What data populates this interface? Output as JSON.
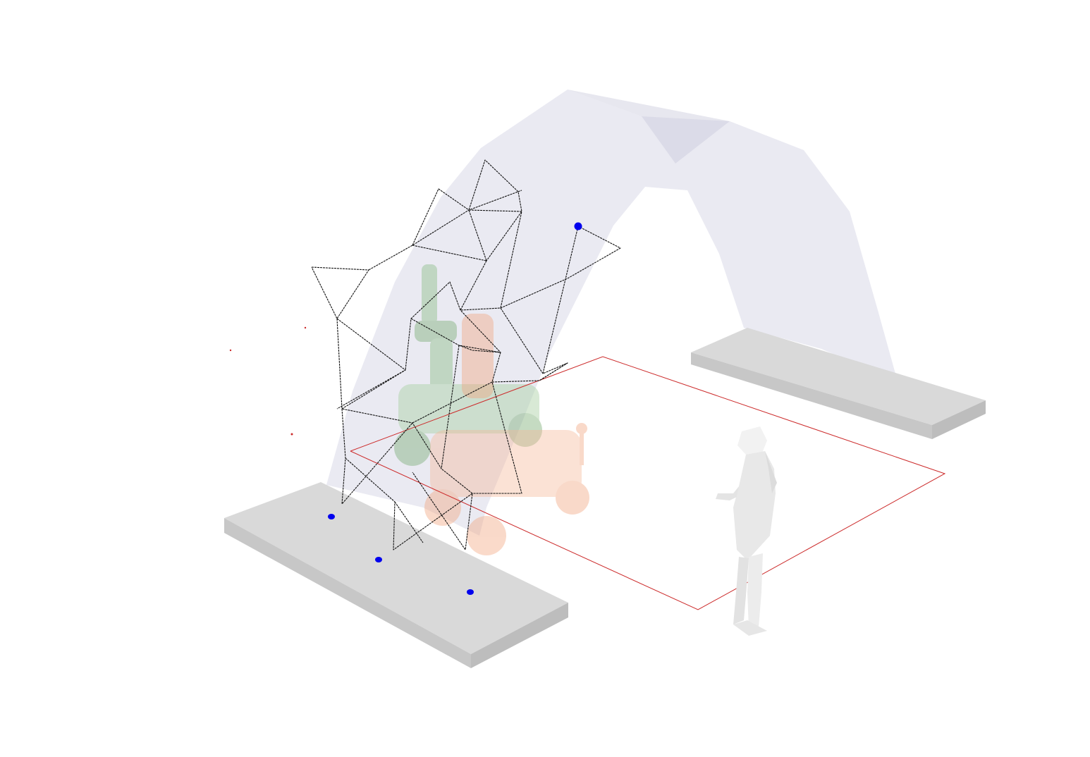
{
  "scene": {
    "background_color": "#ffffff",
    "arch_color": "#d9d9e8",
    "support_pad_color": "#d2d2d2",
    "wireframe_color": "#111111",
    "work_zone_color": "#cc2a2a",
    "anchor_point_color": "#0000ee",
    "robot_arm_color": "#8fbf8a",
    "mobile_base_color": "#f2a27a",
    "human_figure_color": "#eeeeee"
  }
}
